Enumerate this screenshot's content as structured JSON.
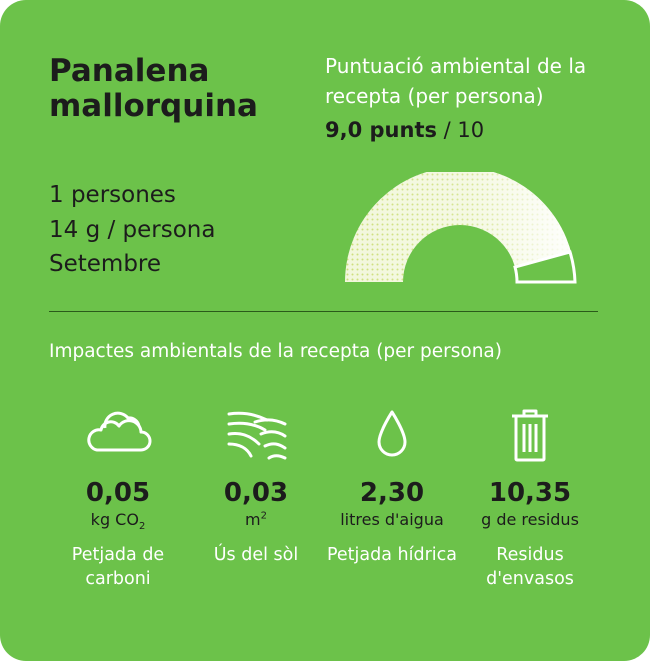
{
  "recipe": {
    "title": "Panalena mallorquina",
    "persons": "1 persones",
    "weight": "14 g / persona",
    "month": "Setembre"
  },
  "score": {
    "label": "Puntuació ambiental de la recepta (per persona)",
    "value": "9,0 punts",
    "max": "/ 10",
    "numeric": 9.0,
    "scale_max": 10
  },
  "impacts": {
    "title": "Impactes ambientals de la recepta (per persona)",
    "items": [
      {
        "icon": "cloud-icon",
        "value": "0,05",
        "unit": "kg CO",
        "unit_suffix": "2",
        "label": "Petjada de carboni"
      },
      {
        "icon": "field-icon",
        "value": "0,03",
        "unit": "m",
        "unit_suffix": "2",
        "label": "Ús del sòl"
      },
      {
        "icon": "water-drop-icon",
        "value": "2,30",
        "unit": "litres d'aigua",
        "unit_suffix": "",
        "label": "Petjada hídrica"
      },
      {
        "icon": "trash-icon",
        "value": "10,35",
        "unit": "g de residus",
        "unit_suffix": "",
        "label": "Residus d'envasos"
      }
    ]
  },
  "colors": {
    "background": "#6cc24a",
    "gauge_fill": "#f0f5d8",
    "gauge_dots": "#d9e79a",
    "text_dark": "#1c1c1c",
    "text_light": "#ffffff"
  }
}
